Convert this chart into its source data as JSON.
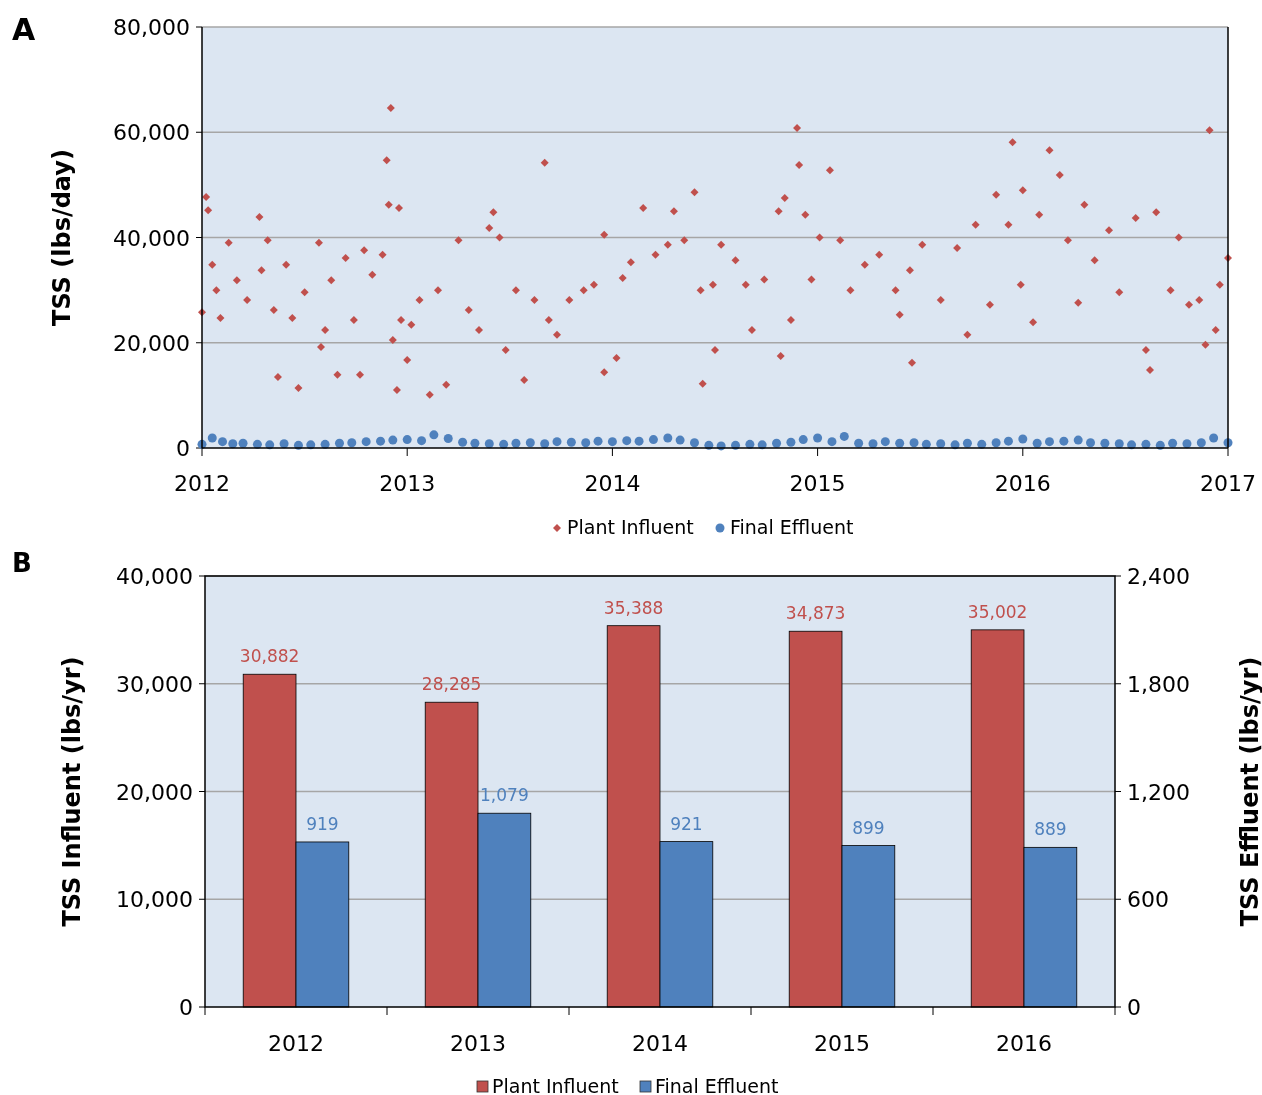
{
  "chart_data": [
    {
      "type": "scatter",
      "title": "A",
      "ylabel": "TSS (lbs/day)",
      "xlim": [
        2012,
        2017
      ],
      "xticks": [
        2012,
        2013,
        2014,
        2015,
        2016,
        2017
      ],
      "ylim": [
        0,
        80000
      ],
      "yticks": [
        0,
        {
          "value": 20000,
          "label": "20,000"
        },
        {
          "value": 40000,
          "label": "40,000"
        },
        {
          "value": 60000,
          "label": "60,000"
        },
        {
          "value": 80000,
          "label": "80,000"
        }
      ],
      "grid": "y",
      "legend": "bottom",
      "series": [
        {
          "name": "Plant Influent",
          "color": "#c0504d",
          "marker": "diamond",
          "x": [
            2012.0,
            2012.02,
            2012.03,
            2012.05,
            2012.07,
            2012.09,
            2012.13,
            2012.17,
            2012.22,
            2012.28,
            2012.29,
            2012.32,
            2012.35,
            2012.37,
            2012.41,
            2012.44,
            2012.47,
            2012.5,
            2012.57,
            2012.58,
            2012.6,
            2012.63,
            2012.66,
            2012.7,
            2012.74,
            2012.77,
            2012.79,
            2012.83,
            2012.88,
            2012.9,
            2012.91,
            2012.92,
            2012.93,
            2012.95,
            2012.96,
            2012.97,
            2013.0,
            2013.02,
            2013.06,
            2013.11,
            2013.15,
            2013.19,
            2013.25,
            2013.3,
            2013.35,
            2013.4,
            2013.42,
            2013.45,
            2013.48,
            2013.53,
            2013.57,
            2013.62,
            2013.67,
            2013.69,
            2013.73,
            2013.79,
            2013.86,
            2013.91,
            2013.96,
            2013.96,
            2014.02,
            2014.05,
            2014.09,
            2014.15,
            2014.21,
            2014.27,
            2014.3,
            2014.35,
            2014.4,
            2014.43,
            2014.44,
            2014.49,
            2014.5,
            2014.53,
            2014.6,
            2014.65,
            2014.68,
            2014.74,
            2014.81,
            2014.82,
            2014.84,
            2014.87,
            2014.9,
            2014.91,
            2014.94,
            2014.97,
            2015.01,
            2015.06,
            2015.11,
            2015.16,
            2015.23,
            2015.3,
            2015.38,
            2015.4,
            2015.45,
            2015.46,
            2015.51,
            2015.6,
            2015.68,
            2015.73,
            2015.77,
            2015.84,
            2015.87,
            2015.93,
            2015.95,
            2015.99,
            2016.0,
            2016.05,
            2016.08,
            2016.13,
            2016.18,
            2016.22,
            2016.27,
            2016.3,
            2016.35,
            2016.42,
            2016.47,
            2016.55,
            2016.6,
            2016.62,
            2016.65,
            2016.72,
            2016.76,
            2016.81,
            2016.86,
            2016.89,
            2016.91,
            2016.94,
            2016.96,
            2017.0
          ],
          "values": [
            25800,
            47700,
            45200,
            34800,
            30000,
            24700,
            39000,
            31900,
            28100,
            43900,
            33800,
            39500,
            26200,
            13500,
            34800,
            24700,
            11400,
            29600,
            39000,
            19200,
            22400,
            31900,
            13900,
            36100,
            24300,
            13900,
            37600,
            32900,
            36700,
            54700,
            46200,
            64600,
            20500,
            11000,
            45600,
            24300,
            16700,
            23400,
            28100,
            10100,
            30000,
            12000,
            39500,
            26200,
            22400,
            41800,
            44800,
            40000,
            18600,
            30000,
            12900,
            28100,
            54200,
            24300,
            21500,
            28100,
            30000,
            31000,
            40500,
            14400,
            17100,
            32300,
            35300,
            45600,
            36700,
            38600,
            45000,
            39500,
            48600,
            30000,
            12200,
            31000,
            18600,
            38600,
            35700,
            31000,
            22400,
            32000,
            45000,
            17500,
            47500,
            24300,
            60800,
            53800,
            44300,
            32000,
            40000,
            52800,
            39500,
            30000,
            34800,
            36700,
            30000,
            25300,
            33800,
            16200,
            38600,
            28100,
            38000,
            21500,
            42400,
            27200,
            48100,
            42400,
            58100,
            31000,
            49000,
            23900,
            44300,
            56600,
            51900,
            39500,
            27600,
            46200,
            35700,
            41400,
            29600,
            43700,
            18600,
            14800,
            44800,
            30000,
            40000,
            27200,
            28100,
            19600,
            60400,
            22400,
            31000,
            36100
          ]
        },
        {
          "name": "Final Effluent",
          "color": "#4f81bd",
          "marker": "circle",
          "x": [
            2012.0,
            2012.05,
            2012.1,
            2012.15,
            2012.2,
            2012.27,
            2012.33,
            2012.4,
            2012.47,
            2012.53,
            2012.6,
            2012.67,
            2012.73,
            2012.8,
            2012.87,
            2012.93,
            2013.0,
            2013.07,
            2013.13,
            2013.2,
            2013.27,
            2013.33,
            2013.4,
            2013.47,
            2013.53,
            2013.6,
            2013.67,
            2013.73,
            2013.8,
            2013.87,
            2013.93,
            2014.0,
            2014.07,
            2014.13,
            2014.2,
            2014.27,
            2014.33,
            2014.4,
            2014.47,
            2014.53,
            2014.6,
            2014.67,
            2014.73,
            2014.8,
            2014.87,
            2014.93,
            2015.0,
            2015.07,
            2015.13,
            2015.2,
            2015.27,
            2015.33,
            2015.4,
            2015.47,
            2015.53,
            2015.6,
            2015.67,
            2015.73,
            2015.8,
            2015.87,
            2015.93,
            2016.0,
            2016.07,
            2016.13,
            2016.2,
            2016.27,
            2016.33,
            2016.4,
            2016.47,
            2016.53,
            2016.6,
            2016.67,
            2016.73,
            2016.8,
            2016.87,
            2016.93,
            2017.0
          ],
          "values": [
            700,
            1900,
            1200,
            800,
            900,
            700,
            600,
            800,
            500,
            600,
            700,
            900,
            1000,
            1200,
            1300,
            1500,
            1600,
            1400,
            2500,
            1800,
            1100,
            900,
            800,
            700,
            900,
            1000,
            800,
            1200,
            1100,
            1000,
            1300,
            1200,
            1400,
            1300,
            1600,
            1900,
            1500,
            1000,
            500,
            400,
            500,
            700,
            600,
            900,
            1100,
            1600,
            1900,
            1200,
            2200,
            900,
            800,
            1200,
            900,
            1000,
            700,
            800,
            600,
            900,
            700,
            1000,
            1300,
            1700,
            900,
            1200,
            1300,
            1500,
            1000,
            900,
            800,
            600,
            700,
            500,
            900,
            800,
            1000,
            1900,
            1000
          ]
        }
      ]
    },
    {
      "type": "bar",
      "title": "B",
      "ylabel": "TSS Influent (lbs/yr)",
      "y2label": "TSS Effluent (lbs/yr)",
      "categories": [
        "2012",
        "2013",
        "2014",
        "2015",
        "2016"
      ],
      "ylim": [
        0,
        40000
      ],
      "yticks": [
        0,
        {
          "value": 10000,
          "label": "10,000"
        },
        {
          "value": 20000,
          "label": "20,000"
        },
        {
          "value": 30000,
          "label": "30,000"
        },
        {
          "value": 40000,
          "label": "40,000"
        }
      ],
      "y2lim": [
        0,
        2400
      ],
      "y2ticks": [
        0,
        600,
        {
          "value": 1200,
          "label": "1,200"
        },
        {
          "value": 1800,
          "label": "1,800"
        },
        {
          "value": 2400,
          "label": "2,400"
        }
      ],
      "grid": "y",
      "legend": "bottom",
      "series": [
        {
          "name": "Plant Influent",
          "color": "#c0504d",
          "values": [
            30882,
            28285,
            35388,
            34873,
            35002
          ],
          "value_labels": [
            "30,882",
            "28,285",
            "35,388",
            "34,873",
            "35,002"
          ]
        },
        {
          "name": "Final Effluent",
          "color": "#4f81bd",
          "axis": "y2",
          "values": [
            919,
            1079,
            921,
            899,
            889
          ],
          "value_labels": [
            "919",
            "1,079",
            "921",
            "899",
            "889"
          ]
        }
      ]
    }
  ]
}
